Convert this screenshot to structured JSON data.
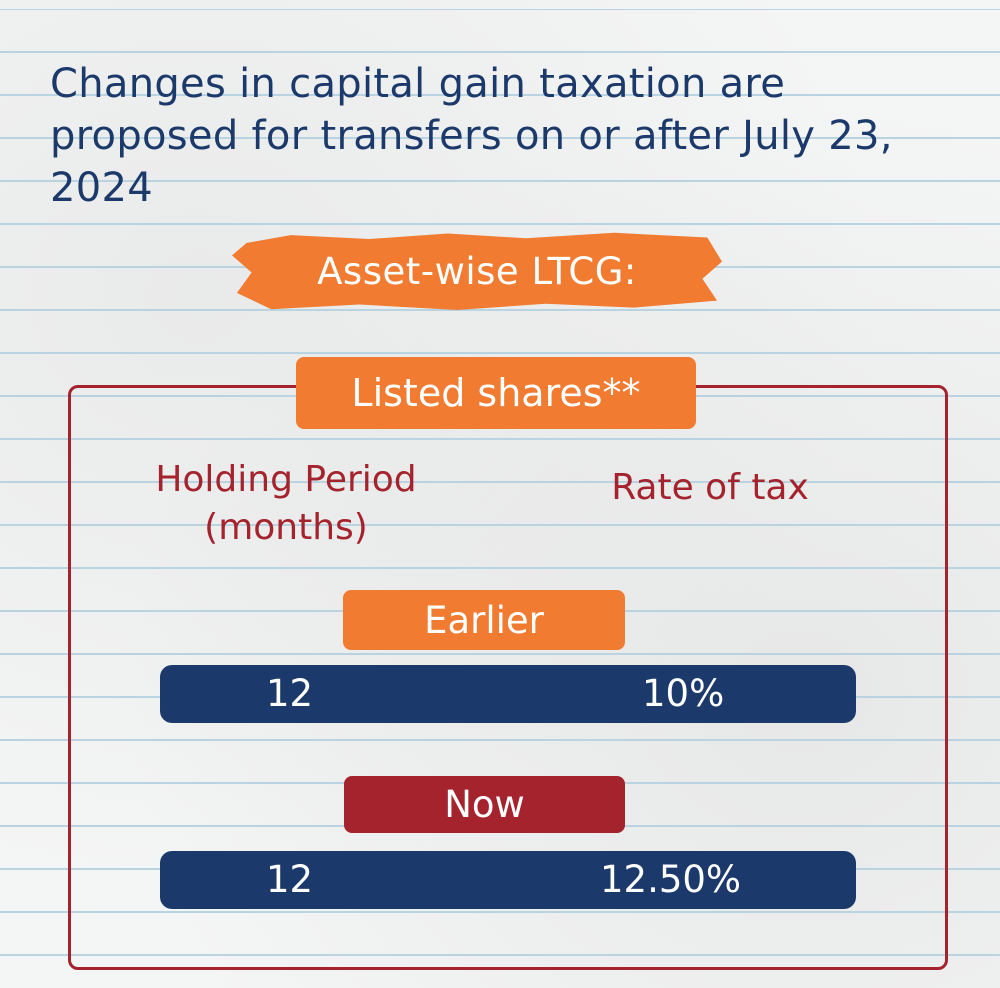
{
  "headline": "Changes in capital gain taxation are proposed for transfers on or after July 23, 2024",
  "section_title": "Asset-wise LTCG:",
  "asset_label": "Listed shares**",
  "columns": {
    "holding": "Holding Period (months)",
    "rate": "Rate of tax"
  },
  "rows": [
    {
      "label": "Earlier",
      "holding": "12",
      "rate": "10%"
    },
    {
      "label": "Now",
      "holding": "12",
      "rate": "12.50%"
    }
  ],
  "colors": {
    "navy": "#1b3a6b",
    "orange": "#f07b31",
    "crimson": "#a5232d",
    "paper": "#f4f5f5",
    "rule_lines": "#b9d3e0"
  }
}
